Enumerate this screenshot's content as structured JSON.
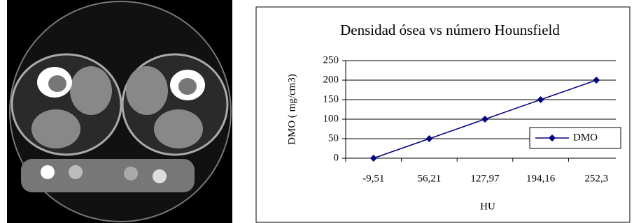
{
  "chart_data": {
    "type": "line",
    "title": "Densidad ósea vs número Hounsfield",
    "x_label": "HU",
    "y_label": "DMO ( mg/cm3)",
    "categories": [
      "-9,51",
      "56,21",
      "127,97",
      "194,16",
      "252,3"
    ],
    "series": [
      {
        "name": "DMO",
        "color": "#000080",
        "values": [
          0,
          50,
          100,
          150,
          200
        ]
      }
    ],
    "ylim": [
      0,
      250
    ],
    "yticks": [
      0,
      50,
      100,
      150,
      200,
      250
    ],
    "grid": true,
    "legend": "right"
  }
}
